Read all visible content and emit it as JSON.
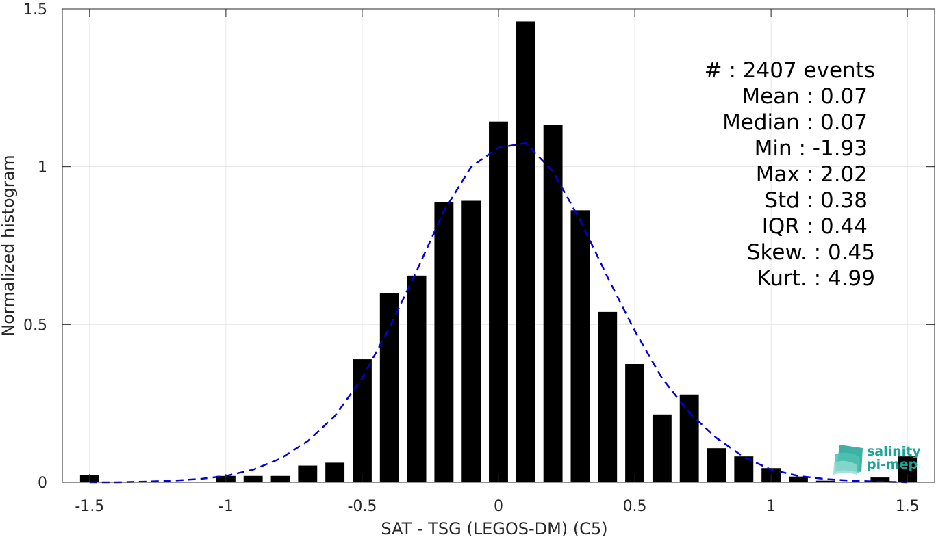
{
  "chart_data": {
    "type": "bar",
    "title": "",
    "xlabel": "SAT - TSG (LEGOS-DM) (C5)",
    "ylabel": "Normalized histogram",
    "xlim": [
      -1.6,
      1.6
    ],
    "ylim": [
      0,
      1.5
    ],
    "grid": true,
    "x_ticks": [
      -1.5,
      -1,
      -0.5,
      0,
      0.5,
      1,
      1.5
    ],
    "x_tick_labels": [
      "-1.5",
      "-1",
      "-0.5",
      "0",
      "0.5",
      "1",
      "1.5"
    ],
    "y_ticks": [
      0,
      0.5,
      1,
      1.5
    ],
    "y_tick_labels": [
      "0",
      "0.5",
      "1",
      "1.5"
    ],
    "bar_color": "#000000",
    "bar_width": 0.07,
    "histogram": {
      "bin_centers": [
        -1.5,
        -1.0,
        -0.9,
        -0.8,
        -0.7,
        -0.6,
        -0.5,
        -0.4,
        -0.3,
        -0.2,
        -0.1,
        0.0,
        0.1,
        0.2,
        0.3,
        0.4,
        0.5,
        0.6,
        0.7,
        0.8,
        0.9,
        1.0,
        1.1,
        1.2,
        1.4,
        1.5
      ],
      "values": [
        0.022,
        0.02,
        0.02,
        0.02,
        0.053,
        0.062,
        0.39,
        0.6,
        0.655,
        0.888,
        0.892,
        1.143,
        1.46,
        1.133,
        0.862,
        0.54,
        0.375,
        0.215,
        0.278,
        0.108,
        0.082,
        0.045,
        0.018,
        0.005,
        0.015,
        0.082
      ]
    },
    "fit_curve": {
      "name": "",
      "style": "dashed",
      "color": "#0000dd",
      "x": [
        -1.5,
        -1.4,
        -1.3,
        -1.2,
        -1.1,
        -1.0,
        -0.9,
        -0.8,
        -0.7,
        -0.6,
        -0.5,
        -0.4,
        -0.3,
        -0.2,
        -0.1,
        0.0,
        0.1,
        0.2,
        0.3,
        0.4,
        0.5,
        0.6,
        0.7,
        0.8,
        0.9,
        1.0,
        1.1,
        1.2,
        1.3,
        1.4,
        1.5
      ],
      "y": [
        0.0,
        0.0,
        0.002,
        0.005,
        0.01,
        0.02,
        0.04,
        0.075,
        0.13,
        0.21,
        0.33,
        0.49,
        0.67,
        0.86,
        1.0,
        1.06,
        1.075,
        0.985,
        0.83,
        0.65,
        0.48,
        0.33,
        0.22,
        0.14,
        0.08,
        0.04,
        0.02,
        0.01,
        0.005,
        0.002,
        0.0
      ]
    },
    "annotations": [
      {
        "label": "#  ",
        "value": ": 2407 events"
      },
      {
        "label": "Mean ",
        "value": ": 0.07"
      },
      {
        "label": "Median ",
        "value": ": 0.07"
      },
      {
        "label": "Min ",
        "value": ": -1.93"
      },
      {
        "label": "Max ",
        "value": ": 2.02"
      },
      {
        "label": "Std ",
        "value": ": 0.38"
      },
      {
        "label": "IQR ",
        "value": ": 0.44"
      },
      {
        "label": "Skew. ",
        "value": ": 0.45"
      },
      {
        "label": "Kurt. ",
        "value": ": 4.99"
      }
    ]
  },
  "logo": {
    "line1": "salinity",
    "line2": "pi-mep",
    "color": "#1aa59a"
  }
}
